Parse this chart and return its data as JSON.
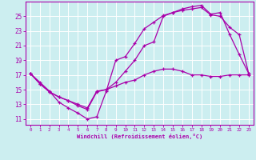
{
  "xlabel": "Windchill (Refroidissement éolien,°C)",
  "bg_color": "#cceef0",
  "line_color": "#aa00aa",
  "grid_color": "#ffffff",
  "xlim": [
    -0.5,
    23.5
  ],
  "ylim": [
    10.2,
    27.0
  ],
  "xticks": [
    0,
    1,
    2,
    3,
    4,
    5,
    6,
    7,
    8,
    9,
    10,
    11,
    12,
    13,
    14,
    15,
    16,
    17,
    18,
    19,
    20,
    21,
    22,
    23
  ],
  "yticks": [
    11,
    13,
    15,
    17,
    19,
    21,
    23,
    25
  ],
  "line1_x": [
    0,
    1,
    2,
    3,
    4,
    5,
    6,
    7,
    8,
    9,
    10,
    11,
    12,
    13,
    14,
    15,
    16,
    17,
    18,
    19,
    20,
    21,
    22,
    23
  ],
  "line1_y": [
    17.2,
    16.0,
    14.8,
    13.3,
    12.5,
    11.8,
    11.0,
    11.3,
    14.8,
    19.0,
    19.5,
    21.3,
    23.3,
    24.2,
    25.1,
    25.5,
    26.0,
    26.3,
    26.5,
    25.3,
    25.5,
    22.5,
    19.8,
    17.2
  ],
  "line2_x": [
    0,
    1,
    2,
    3,
    4,
    5,
    6,
    7,
    8,
    9,
    10,
    11,
    12,
    13,
    14,
    15,
    16,
    17,
    18,
    19,
    20,
    21,
    22,
    23
  ],
  "line2_y": [
    17.2,
    15.8,
    14.7,
    14.0,
    13.5,
    12.8,
    12.3,
    14.7,
    15.0,
    16.0,
    17.5,
    19.0,
    21.0,
    21.5,
    25.0,
    25.5,
    25.8,
    26.0,
    26.2,
    25.2,
    25.0,
    23.5,
    22.5,
    17.2
  ],
  "line3_x": [
    0,
    1,
    2,
    3,
    4,
    5,
    6,
    7,
    8,
    9,
    10,
    11,
    12,
    13,
    14,
    15,
    16,
    17,
    18,
    19,
    20,
    21,
    22,
    23
  ],
  "line3_y": [
    17.2,
    15.8,
    14.7,
    14.0,
    13.5,
    13.0,
    12.5,
    14.8,
    15.0,
    15.5,
    16.0,
    16.3,
    17.0,
    17.5,
    17.8,
    17.8,
    17.5,
    17.0,
    17.0,
    16.8,
    16.8,
    17.0,
    17.0,
    17.0
  ]
}
